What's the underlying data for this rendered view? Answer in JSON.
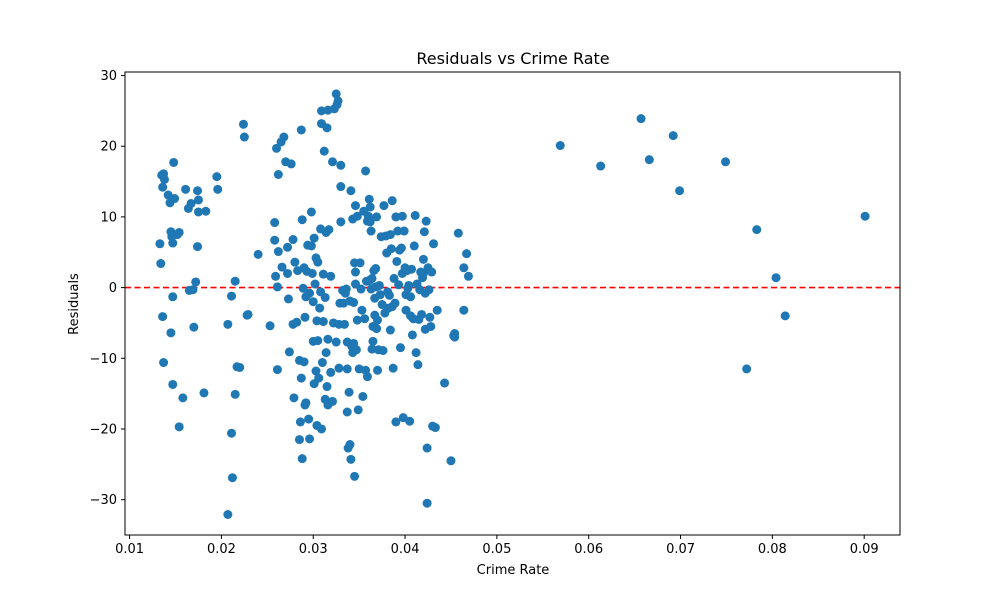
{
  "chart_data": {
    "type": "scatter",
    "title": "Residuals vs Crime Rate",
    "xlabel": "Crime Rate",
    "ylabel": "Residuals",
    "xlim": [
      0.0095,
      0.0939
    ],
    "ylim": [
      -35,
      30.5
    ],
    "x_ticks": [
      0.01,
      0.02,
      0.03,
      0.04,
      0.05,
      0.06,
      0.07,
      0.08,
      0.09
    ],
    "x_tick_labels": [
      "0.01",
      "0.02",
      "0.03",
      "0.04",
      "0.05",
      "0.06",
      "0.07",
      "0.08",
      "0.09"
    ],
    "y_ticks": [
      -30,
      -20,
      -10,
      0,
      10,
      20,
      30
    ],
    "y_tick_labels": [
      "−30",
      "−20",
      "−10",
      "0",
      "10",
      "20",
      "30"
    ],
    "grid": false,
    "point_color": "#1f77b4",
    "reference_line": {
      "y": 0,
      "color": "#ff0000",
      "style": "dashed"
    },
    "series": [
      {
        "points": [
          [
            0.0133,
            6.2
          ],
          [
            0.0134,
            3.4
          ],
          [
            0.0135,
            15.9
          ],
          [
            0.0136,
            14.2
          ],
          [
            0.0137,
            16.1
          ],
          [
            0.0138,
            15.3
          ],
          [
            0.0136,
            -4.1
          ],
          [
            0.0137,
            -10.6
          ],
          [
            0.0142,
            13.1
          ],
          [
            0.0144,
            12.0
          ],
          [
            0.0145,
            7.9
          ],
          [
            0.0146,
            7.2
          ],
          [
            0.0147,
            6.3
          ],
          [
            0.0148,
            17.7
          ],
          [
            0.0149,
            12.6
          ],
          [
            0.0147,
            -1.3
          ],
          [
            0.0145,
            -6.4
          ],
          [
            0.0147,
            -13.7
          ],
          [
            0.0152,
            7.5
          ],
          [
            0.0154,
            7.8
          ],
          [
            0.0154,
            -19.7
          ],
          [
            0.0158,
            -15.6
          ],
          [
            0.0161,
            13.9
          ],
          [
            0.0164,
            11.2
          ],
          [
            0.0165,
            -0.4
          ],
          [
            0.0167,
            11.9
          ],
          [
            0.0169,
            -0.3
          ],
          [
            0.017,
            -5.6
          ],
          [
            0.0172,
            0.8
          ],
          [
            0.0174,
            13.7
          ],
          [
            0.0175,
            12.4
          ],
          [
            0.0175,
            10.7
          ],
          [
            0.0174,
            5.8
          ],
          [
            0.0181,
            -14.9
          ],
          [
            0.0183,
            10.8
          ],
          [
            0.0195,
            15.7
          ],
          [
            0.0196,
            13.9
          ],
          [
            0.0207,
            -32.1
          ],
          [
            0.0207,
            -5.2
          ],
          [
            0.0211,
            -1.2
          ],
          [
            0.0211,
            -20.6
          ],
          [
            0.0212,
            -26.9
          ],
          [
            0.0215,
            0.9
          ],
          [
            0.0215,
            -15.1
          ],
          [
            0.0217,
            -11.2
          ],
          [
            0.022,
            -11.3
          ],
          [
            0.0224,
            23.1
          ],
          [
            0.0225,
            21.3
          ],
          [
            0.0228,
            -3.9
          ],
          [
            0.0229,
            -3.8
          ],
          [
            0.024,
            4.7
          ],
          [
            0.0253,
            -5.4
          ],
          [
            0.0258,
            9.2
          ],
          [
            0.0258,
            6.7
          ],
          [
            0.0259,
            1.6
          ],
          [
            0.026,
            19.7
          ],
          [
            0.0261,
            0.1
          ],
          [
            0.0262,
            5.1
          ],
          [
            0.0262,
            16.0
          ],
          [
            0.0261,
            -11.6
          ],
          [
            0.0265,
            20.6
          ],
          [
            0.0266,
            2.9
          ],
          [
            0.0268,
            21.3
          ],
          [
            0.027,
            17.8
          ],
          [
            0.0272,
            2.0
          ],
          [
            0.0272,
            5.7
          ],
          [
            0.0273,
            -1.6
          ],
          [
            0.0274,
            -9.1
          ],
          [
            0.0276,
            17.5
          ],
          [
            0.0278,
            6.8
          ],
          [
            0.0279,
            -15.6
          ],
          [
            0.0278,
            -5.2
          ],
          [
            0.028,
            3.6
          ],
          [
            0.0282,
            -4.9
          ],
          [
            0.0283,
            2.4
          ],
          [
            0.0285,
            -21.5
          ],
          [
            0.0285,
            -10.3
          ],
          [
            0.0286,
            -19.0
          ],
          [
            0.0287,
            22.3
          ],
          [
            0.0287,
            -12.8
          ],
          [
            0.0288,
            9.6
          ],
          [
            0.0288,
            -24.2
          ],
          [
            0.0289,
            -0.1
          ],
          [
            0.029,
            2.8
          ],
          [
            0.029,
            -10.5
          ],
          [
            0.0291,
            -4.2
          ],
          [
            0.0291,
            -16.6
          ],
          [
            0.0292,
            -1.3
          ],
          [
            0.0292,
            -16.3
          ],
          [
            0.0293,
            2.3
          ],
          [
            0.0294,
            6.0
          ],
          [
            0.0295,
            -18.6
          ],
          [
            0.0296,
            -0.8
          ],
          [
            0.0296,
            -21.4
          ],
          [
            0.0298,
            5.9
          ],
          [
            0.0298,
            10.7
          ],
          [
            0.0299,
            2.0
          ],
          [
            0.03,
            -7.6
          ],
          [
            0.03,
            -2.0
          ],
          [
            0.0301,
            -13.6
          ],
          [
            0.0301,
            7.0
          ],
          [
            0.0302,
            0.5
          ],
          [
            0.0303,
            4.2
          ],
          [
            0.0303,
            -11.8
          ],
          [
            0.0304,
            -4.7
          ],
          [
            0.0304,
            -19.5
          ],
          [
            0.0305,
            3.6
          ],
          [
            0.0305,
            -7.5
          ],
          [
            0.0306,
            -12.8
          ],
          [
            0.0307,
            -2.9
          ],
          [
            0.0308,
            -0.6
          ],
          [
            0.0308,
            8.3
          ],
          [
            0.0309,
            23.2
          ],
          [
            0.0309,
            25.0
          ],
          [
            0.0309,
            -20.0
          ],
          [
            0.031,
            -10.6
          ],
          [
            0.0311,
            -4.8
          ],
          [
            0.0311,
            1.9
          ],
          [
            0.0312,
            19.3
          ],
          [
            0.0313,
            -1.4
          ],
          [
            0.0313,
            -15.8
          ],
          [
            0.0314,
            7.8
          ],
          [
            0.0314,
            -9.2
          ],
          [
            0.0315,
            22.6
          ],
          [
            0.0315,
            -14.0
          ],
          [
            0.0316,
            25.1
          ],
          [
            0.0316,
            -7.3
          ],
          [
            0.0316,
            -16.6
          ],
          [
            0.0317,
            8.2
          ],
          [
            0.0319,
            -12.0
          ],
          [
            0.0319,
            1.6
          ],
          [
            0.0321,
            17.8
          ],
          [
            0.0321,
            -16.1
          ],
          [
            0.0322,
            -5.0
          ],
          [
            0.0323,
            25.3
          ],
          [
            0.0325,
            27.4
          ],
          [
            0.0325,
            -7.7
          ],
          [
            0.0326,
            25.9
          ],
          [
            0.0327,
            26.4
          ],
          [
            0.0328,
            -11.4
          ],
          [
            0.0328,
            -5.2
          ],
          [
            0.0329,
            -2.2
          ],
          [
            0.033,
            17.3
          ],
          [
            0.033,
            14.3
          ],
          [
            0.033,
            9.3
          ],
          [
            0.0332,
            -0.4
          ],
          [
            0.0333,
            -2.2
          ],
          [
            0.0334,
            -5.2
          ],
          [
            0.0335,
            -0.8
          ],
          [
            0.0336,
            -0.2
          ],
          [
            0.0337,
            -11.5
          ],
          [
            0.0337,
            -7.7
          ],
          [
            0.0337,
            -17.6
          ],
          [
            0.0338,
            -22.7
          ],
          [
            0.0339,
            -14.8
          ],
          [
            0.034,
            -22.2
          ],
          [
            0.034,
            -1.9
          ],
          [
            0.0341,
            13.7
          ],
          [
            0.0341,
            -24.3
          ],
          [
            0.0342,
            -8.3
          ],
          [
            0.0343,
            -9.2
          ],
          [
            0.0343,
            9.7
          ],
          [
            0.0344,
            -7.9
          ],
          [
            0.0344,
            -2.1
          ],
          [
            0.0345,
            3.5
          ],
          [
            0.0345,
            -26.7
          ],
          [
            0.0346,
            0.5
          ],
          [
            0.0346,
            11.6
          ],
          [
            0.0346,
            2.2
          ],
          [
            0.0347,
            -8.8
          ],
          [
            0.0348,
            -4.6
          ],
          [
            0.0348,
            10.1
          ],
          [
            0.0349,
            -17.3
          ],
          [
            0.035,
            -11.5
          ],
          [
            0.0351,
            3.5
          ],
          [
            0.0352,
            -0.2
          ],
          [
            0.0353,
            -3.2
          ],
          [
            0.0354,
            -15.4
          ],
          [
            0.0355,
            10.8
          ],
          [
            0.0356,
            -4.4
          ],
          [
            0.0357,
            -11.7
          ],
          [
            0.0357,
            16.5
          ],
          [
            0.0358,
            0.9
          ],
          [
            0.0359,
            -12.6
          ],
          [
            0.0359,
            9.4
          ],
          [
            0.036,
            10.1
          ],
          [
            0.0361,
            12.5
          ],
          [
            0.0361,
            1.0
          ],
          [
            0.0362,
            9.3
          ],
          [
            0.0362,
            11.4
          ],
          [
            0.0363,
            8.0
          ],
          [
            0.0363,
            -0.2
          ],
          [
            0.0364,
            1.3
          ],
          [
            0.0364,
            -8.7
          ],
          [
            0.0365,
            -5.5
          ],
          [
            0.0365,
            -7.6
          ],
          [
            0.0366,
            2.4
          ],
          [
            0.0367,
            -1.5
          ],
          [
            0.0367,
            -3.9
          ],
          [
            0.0368,
            0.1
          ],
          [
            0.0368,
            2.7
          ],
          [
            0.0369,
            -5.8
          ],
          [
            0.0369,
            10.0
          ],
          [
            0.037,
            -4.6
          ],
          [
            0.037,
            -11.7
          ],
          [
            0.0371,
            -8.8
          ],
          [
            0.0372,
            0.3
          ],
          [
            0.0373,
            -1.0
          ],
          [
            0.0374,
            7.2
          ],
          [
            0.0375,
            -2.4
          ],
          [
            0.0376,
            -8.9
          ],
          [
            0.0377,
            11.6
          ],
          [
            0.0378,
            -3.6
          ],
          [
            0.0379,
            7.3
          ],
          [
            0.038,
            4.9
          ],
          [
            0.0381,
            -0.6
          ],
          [
            0.0382,
            -2.9
          ],
          [
            0.0383,
            -1.1
          ],
          [
            0.0384,
            7.5
          ],
          [
            0.0384,
            -6.0
          ],
          [
            0.0385,
            5.5
          ],
          [
            0.0386,
            12.3
          ],
          [
            0.0386,
            -2.7
          ],
          [
            0.0387,
            -11.4
          ],
          [
            0.0388,
            1.3
          ],
          [
            0.0389,
            -2.2
          ],
          [
            0.039,
            -19.0
          ],
          [
            0.039,
            10.0
          ],
          [
            0.0391,
            3.7
          ],
          [
            0.0392,
            8.0
          ],
          [
            0.0393,
            0.4
          ],
          [
            0.0394,
            5.3
          ],
          [
            0.0395,
            -8.5
          ],
          [
            0.0396,
            5.6
          ],
          [
            0.0397,
            10.1
          ],
          [
            0.0397,
            2.0
          ],
          [
            0.0398,
            -18.4
          ],
          [
            0.0399,
            8.0
          ],
          [
            0.04,
            2.8
          ],
          [
            0.0401,
            -1.0
          ],
          [
            0.0401,
            -3.2
          ],
          [
            0.0402,
            2.4
          ],
          [
            0.0403,
            -0.1
          ],
          [
            0.0404,
            0.3
          ],
          [
            0.0405,
            -18.9
          ],
          [
            0.0406,
            -1.3
          ],
          [
            0.0406,
            -4.0
          ],
          [
            0.0407,
            2.6
          ],
          [
            0.0408,
            -6.7
          ],
          [
            0.0409,
            -4.4
          ],
          [
            0.041,
            5.9
          ],
          [
            0.0411,
            10.2
          ],
          [
            0.0412,
            -9.2
          ],
          [
            0.0413,
            0.5
          ],
          [
            0.0414,
            -10.9
          ],
          [
            0.0415,
            -4.5
          ],
          [
            0.0416,
            -0.3
          ],
          [
            0.0417,
            2.2
          ],
          [
            0.0418,
            -3.8
          ],
          [
            0.0419,
            1.4
          ],
          [
            0.042,
            4.0
          ],
          [
            0.042,
            2.0
          ],
          [
            0.0421,
            7.9
          ],
          [
            0.0422,
            -0.8
          ],
          [
            0.0422,
            -5.9
          ],
          [
            0.0423,
            9.4
          ],
          [
            0.0424,
            -22.7
          ],
          [
            0.0424,
            -30.5
          ],
          [
            0.0425,
            2.8
          ],
          [
            0.0426,
            -0.3
          ],
          [
            0.0427,
            -4.2
          ],
          [
            0.0428,
            -5.5
          ],
          [
            0.0429,
            2.2
          ],
          [
            0.043,
            -19.6
          ],
          [
            0.0431,
            6.2
          ],
          [
            0.0433,
            -19.8
          ],
          [
            0.0435,
            -3.2
          ],
          [
            0.0443,
            -13.5
          ],
          [
            0.045,
            -24.5
          ],
          [
            0.0453,
            -6.8
          ],
          [
            0.0454,
            -6.5
          ],
          [
            0.0454,
            -7.0
          ],
          [
            0.0458,
            7.7
          ],
          [
            0.0464,
            2.8
          ],
          [
            0.0464,
            -3.2
          ],
          [
            0.0467,
            4.8
          ],
          [
            0.0469,
            1.6
          ],
          [
            0.0569,
            20.1
          ],
          [
            0.0613,
            17.2
          ],
          [
            0.0657,
            23.9
          ],
          [
            0.0666,
            18.1
          ],
          [
            0.0692,
            21.5
          ],
          [
            0.0699,
            13.7
          ],
          [
            0.0749,
            17.8
          ],
          [
            0.0772,
            -11.5
          ],
          [
            0.0783,
            8.2
          ],
          [
            0.0804,
            1.4
          ],
          [
            0.0814,
            -4.0
          ],
          [
            0.0901,
            10.1
          ]
        ]
      }
    ]
  }
}
